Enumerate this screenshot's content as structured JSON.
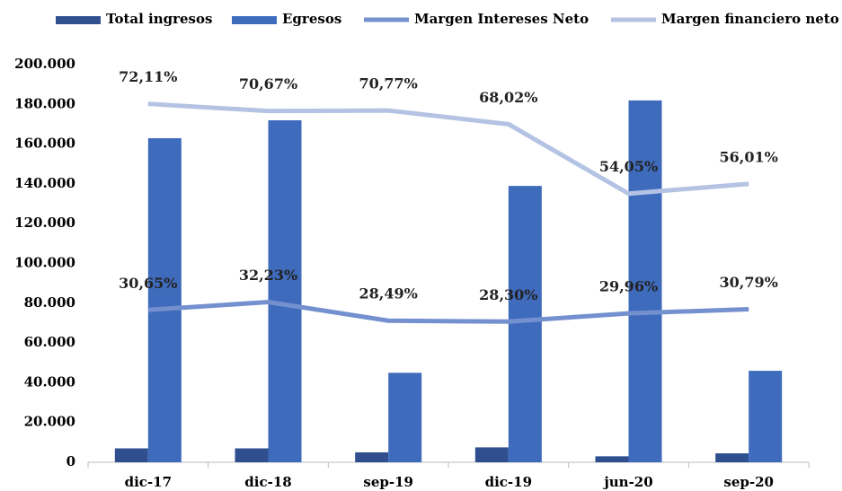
{
  "chart_data": {
    "type": "bar",
    "categories": [
      "dic-17",
      "dic-18",
      "sep-19",
      "dic-19",
      "jun-20",
      "sep-20"
    ],
    "series": [
      {
        "name": "Total ingresos",
        "type": "bar",
        "color": "#2f4f8f",
        "values": [
          7000,
          7000,
          5000,
          7500,
          3000,
          4500
        ]
      },
      {
        "name": "Egresos",
        "type": "bar",
        "color": "#3f6bbd",
        "values": [
          163000,
          172000,
          45000,
          139000,
          182000,
          46000
        ]
      },
      {
        "name": "Margen Intereses  Neto",
        "type": "line",
        "axis": "y2",
        "color": "#7490cf",
        "values": [
          30.65,
          32.23,
          28.49,
          28.3,
          29.96,
          30.79
        ],
        "value_labels": [
          "30,65%",
          "32,23%",
          "28,49%",
          "28,30%",
          "29,96%",
          "30,79%"
        ]
      },
      {
        "name": "Margen financiero neto",
        "type": "line",
        "axis": "y2",
        "color": "#b4c3e3",
        "values": [
          72.11,
          70.67,
          70.77,
          68.02,
          54.05,
          56.01
        ],
        "value_labels": [
          "72,11%",
          "70,67%",
          "70,77%",
          "68,02%",
          "54,05%",
          "56,01%"
        ]
      }
    ],
    "ylim": [
      0,
      200000
    ],
    "yticks": [
      0,
      {
        "value": 20000,
        "label": "20.000"
      },
      {
        "value": 40000,
        "label": "40.000"
      },
      {
        "value": 60000,
        "label": "60.000"
      },
      {
        "value": 80000,
        "label": "80.000"
      },
      {
        "value": 100000,
        "label": "100.000"
      },
      {
        "value": 120000,
        "label": "120.000"
      },
      {
        "value": 140000,
        "label": "140.000"
      },
      {
        "value": 160000,
        "label": "160.000"
      },
      {
        "value": 180000,
        "label": "180.000"
      },
      {
        "value": 200000,
        "label": "200.000"
      }
    ],
    "y2lim": [
      0,
      80
    ],
    "grid": false,
    "legend": "top"
  }
}
